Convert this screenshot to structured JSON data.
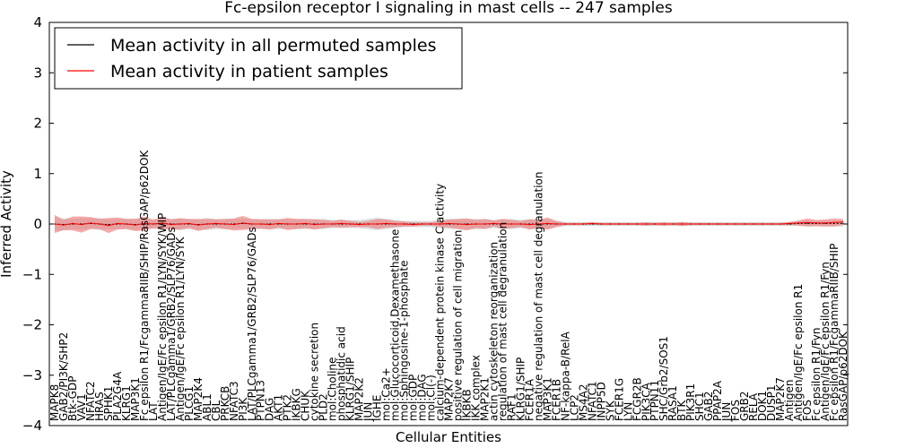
{
  "chart_data": {
    "type": "line",
    "title": "Fc-epsilon receptor I signaling in mast cells -- 247 samples",
    "xlabel": "Cellular Entities",
    "ylabel": "Inferred Activity",
    "ylim": [
      -4,
      4
    ],
    "yticks": [
      "−4",
      "−3",
      "−2",
      "−1",
      "0",
      "1",
      "2",
      "3",
      "4"
    ],
    "legend": {
      "placement": "top-left",
      "entries": [
        {
          "name": "Mean activity in all permuted samples",
          "color": "#000000"
        },
        {
          "name": "Mean activity in patient samples",
          "color": "#ff0000"
        }
      ]
    },
    "colors": {
      "permuted": "#000000",
      "patient": "#ff0000",
      "band_patient": "#f08080",
      "band_permuted": "#bdbdbd"
    },
    "categories": [
      "MAPK8",
      "GAB2/PI3K/SHP2",
      "Btk-GDP",
      "VAV1",
      "NFATC2",
      "HRAS",
      "SPHK1",
      "PLA2G4A",
      "KLRG1",
      "MAP3K1",
      "Fc epsilon R1/FcgammaRIIB/SHIP/RasGAP/p62DOK",
      "LAT",
      "Antigen/IgE/Fc epsilon R1/LYN/SYK/WIP",
      "LAT/PLCgamma1/GRB2/SLP76/GADs",
      "Antigen/IgE/Fc epsilon R1/LYN/SYK",
      "PLCG1",
      "MAP2K4",
      "ABL1",
      "CBL",
      "PRKCB",
      "NFATC3",
      "PI3K",
      "LAT/PLCgamma1/GRB2/SLP76/GADs",
      "PTPN13",
      "DAG",
      "AKT1",
      "PTK2",
      "IKBKG",
      "CHUK",
      "cytokine secretion",
      "PLD2",
      "mol:Choline",
      "phosphatidic acid",
      "KLRG1/SHIP",
      "MAP2K2",
      "JUN",
      "IGHE",
      "mol:Ca2+",
      "mol:Glucocorticoid,Dexamethasone",
      "mol:Sphingosine-1-phosphate",
      "mol:GDP",
      "mol:DAG",
      "mol:Cl(-)",
      "calcium-dependent protein kinase C activity",
      "MAP2K7",
      "positive regulation of cell migration",
      "IKBKB",
      "IKK complex",
      "MAP2K1",
      "actin cytoskeleton reorganization",
      "regulation of mast cell degranulation",
      "RAF1",
      "KLRG1/SHIP",
      "FCER1A",
      "negative regulation of mast cell degranulation",
      "MAP3K1",
      "FCER1B",
      "NF-kappa-B/RelA",
      "LCP2",
      "MS4A2",
      "NFATC1",
      "INPP5D",
      "SYK",
      "FCER1G",
      "LYN",
      "FCGR2B",
      "PIK3CA",
      "PTPN11",
      "SHC/Grb2/SOS1",
      "RASA1",
      "BTK",
      "PIK3R1",
      "SHC1",
      "GAB2",
      "PPAP2A",
      "JUN",
      "FOS",
      "GRB2",
      "RELA",
      "DOK1",
      "DUSP1",
      "MAP2K7",
      "Antigen",
      "Antigen/IgE/Fc epsilon R1",
      "FOS",
      "Fc epsilon R1/Fyn",
      "Antigen/IgE/Fc epsilon R1/Fyn",
      "Fc epsilon R1/FcgammaRIIB/SHIP",
      "RasGAP/p62DOK"
    ],
    "series": [
      {
        "name": "Mean activity in patient samples",
        "values": [
          0.0,
          -0.02,
          0.01,
          -0.01,
          0.02,
          0.0,
          -0.03,
          0.01,
          0.0,
          -0.02,
          0.01,
          0.0,
          0.02,
          -0.01,
          0.0,
          0.01,
          -0.02,
          0.0,
          0.01,
          0.0,
          -0.01,
          0.02,
          0.0,
          0.0,
          -0.01,
          0.01,
          0.0,
          0.0,
          0.01,
          -0.01,
          0.0,
          0.0,
          0.01,
          0.0,
          -0.01,
          0.0,
          0.0,
          0.01,
          0.0,
          0.0,
          -0.01,
          0.0,
          0.0,
          0.0,
          0.01,
          0.0,
          -0.01,
          0.0,
          0.0,
          0.01,
          0.0,
          0.0,
          0.0,
          -0.01,
          0.0,
          0.01,
          0.0,
          0.0,
          0.0,
          0.0,
          0.01,
          0.0,
          0.0,
          0.0,
          0.0,
          0.0,
          0.0,
          0.0,
          0.0,
          0.0,
          0.0,
          0.0,
          0.0,
          0.0,
          0.0,
          0.0,
          0.0,
          0.0,
          0.0,
          0.0,
          0.0,
          0.0,
          0.01,
          0.02,
          0.03,
          0.02,
          0.02,
          0.03,
          0.04
        ]
      },
      {
        "name": "Mean activity in all permuted samples",
        "values": [
          0.0,
          -0.01,
          0.0,
          0.0,
          0.01,
          0.0,
          -0.01,
          0.0,
          0.0,
          -0.01,
          0.0,
          0.0,
          0.01,
          0.0,
          0.0,
          0.0,
          -0.01,
          0.0,
          0.0,
          0.0,
          0.0,
          0.01,
          0.0,
          0.0,
          0.0,
          0.0,
          0.0,
          0.0,
          0.0,
          0.0,
          0.0,
          0.0,
          0.0,
          0.0,
          0.0,
          0.0,
          0.0,
          0.0,
          0.0,
          0.0,
          0.0,
          0.0,
          0.0,
          0.0,
          0.0,
          0.0,
          0.0,
          0.0,
          0.0,
          0.0,
          0.0,
          0.0,
          0.0,
          0.0,
          0.0,
          0.0,
          0.0,
          0.0,
          0.0,
          0.0,
          0.0,
          0.0,
          0.0,
          0.0,
          0.0,
          0.0,
          0.0,
          0.0,
          0.0,
          0.0,
          0.0,
          0.0,
          0.0,
          0.0,
          0.0,
          0.0,
          0.0,
          0.0,
          0.0,
          0.0,
          0.0,
          0.0,
          0.0,
          0.01,
          0.01,
          0.01,
          0.01,
          0.01,
          0.01
        ]
      }
    ],
    "band_patient_halfwidth": [
      0.18,
      0.1,
      0.14,
      0.16,
      0.12,
      0.1,
      0.15,
      0.12,
      0.1,
      0.12,
      0.14,
      0.08,
      0.12,
      0.1,
      0.11,
      0.09,
      0.12,
      0.1,
      0.08,
      0.1,
      0.12,
      0.14,
      0.1,
      0.09,
      0.1,
      0.08,
      0.12,
      0.1,
      0.09,
      0.1,
      0.08,
      0.06,
      0.08,
      0.06,
      0.05,
      0.06,
      0.1,
      0.08,
      0.06,
      0.05,
      0.04,
      0.03,
      0.03,
      0.06,
      0.08,
      0.1,
      0.12,
      0.08,
      0.1,
      0.06,
      0.1,
      0.08,
      0.06,
      0.1,
      0.08,
      0.12,
      0.06,
      0.02,
      0.02,
      0.02,
      0.02,
      0.02,
      0.02,
      0.02,
      0.02,
      0.02,
      0.03,
      0.02,
      0.03,
      0.02,
      0.04,
      0.02,
      0.02,
      0.02,
      0.02,
      0.02,
      0.02,
      0.02,
      0.02,
      0.02,
      0.02,
      0.02,
      0.03,
      0.05,
      0.08,
      0.06,
      0.07,
      0.08,
      0.06
    ],
    "band_permuted_halfwidth": [
      0.14,
      0.12,
      0.1,
      0.12,
      0.1,
      0.12,
      0.1,
      0.1,
      0.1,
      0.12,
      0.1,
      0.1,
      0.1,
      0.1,
      0.12,
      0.1,
      0.1,
      0.12,
      0.1,
      0.1,
      0.1,
      0.1,
      0.1,
      0.1,
      0.1,
      0.1,
      0.1,
      0.1,
      0.1,
      0.1,
      0.1,
      0.08,
      0.08,
      0.08,
      0.08,
      0.1,
      0.12,
      0.1,
      0.08,
      0.06,
      0.06,
      0.06,
      0.06,
      0.08,
      0.1,
      0.1,
      0.1,
      0.1,
      0.1,
      0.08,
      0.1,
      0.1,
      0.08,
      0.1,
      0.1,
      0.1,
      0.06,
      0.04,
      0.04,
      0.04,
      0.04,
      0.04,
      0.04,
      0.04,
      0.04,
      0.04,
      0.04,
      0.04,
      0.04,
      0.04,
      0.04,
      0.04,
      0.04,
      0.04,
      0.04,
      0.04,
      0.04,
      0.04,
      0.04,
      0.04,
      0.04,
      0.04,
      0.04,
      0.05,
      0.06,
      0.06,
      0.06,
      0.06,
      0.06
    ]
  }
}
